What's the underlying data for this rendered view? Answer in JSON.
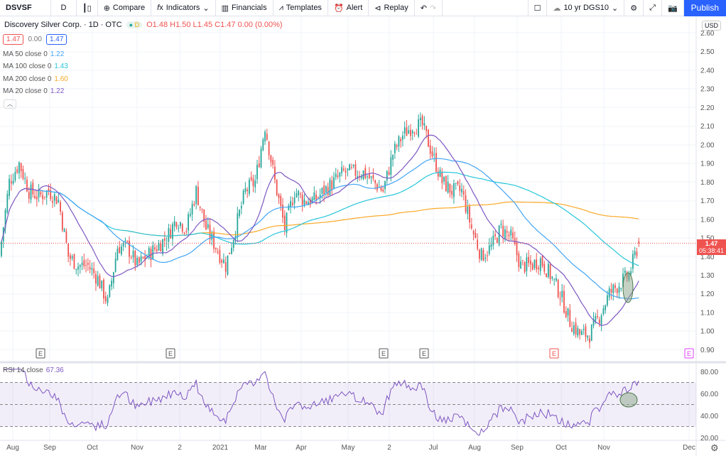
{
  "toolbar": {
    "symbol": "DSVSF",
    "interval": "D",
    "compare": "Compare",
    "indicators": "Indicators",
    "financials": "Financials",
    "templates": "Templates",
    "alert": "Alert",
    "replay": "Replay",
    "compare_symbol": "10 yr DGS10",
    "publish": "Publish"
  },
  "legend": {
    "title": "Discovery Silver Corp. · 1D · OTC",
    "badge": "D",
    "o": "O1.48",
    "h": "H1.50",
    "l": "L1.45",
    "c": "C1.47",
    "change": "0.00 (0.00%)",
    "bid": "1.47",
    "spread": "0.00",
    "ask": "1.47"
  },
  "indicators": [
    {
      "label": "MA 50 close 0",
      "value": "1.22",
      "color": "#42a5f5"
    },
    {
      "label": "MA 100 close 0",
      "value": "1.43",
      "color": "#26c6da"
    },
    {
      "label": "MA 200 close 0",
      "value": "1.60",
      "color": "#f9a825"
    },
    {
      "label": "MA 20 close 0",
      "value": "1.22",
      "color": "#7e57c2"
    }
  ],
  "rsi": {
    "label": "RSI 14 close",
    "value": "67.36"
  },
  "price_axis": {
    "currency": "USD",
    "last_price": "1.47",
    "countdown": "05:38:41",
    "ticks": [
      "2.60",
      "2.50",
      "2.40",
      "2.30",
      "2.20",
      "2.10",
      "2.00",
      "1.90",
      "1.80",
      "1.70",
      "1.60",
      "1.50",
      "1.40",
      "1.30",
      "1.20",
      "1.10",
      "1.00",
      "0.90"
    ]
  },
  "rsi_axis": {
    "ticks": [
      "80.00",
      "60.00",
      "40.00",
      "20.00"
    ]
  },
  "time_axis": [
    "Aug",
    "Sep",
    "Oct",
    "Nov",
    "2",
    "2021",
    "Mar",
    "Apr",
    "May",
    "2",
    "Jul",
    "Aug",
    "Sep",
    "Oct",
    "Nov",
    "Dec"
  ],
  "earnings_markers": [
    "E",
    "E",
    "E",
    "E",
    "E",
    "E"
  ],
  "colors": {
    "up": "#26a69a",
    "down": "#ef5350",
    "ma20": "#7e57c2",
    "ma50": "#42a5f5",
    "ma100": "#26c6da",
    "ma200": "#f9a825"
  },
  "chart_data": {
    "type": "candlestick",
    "ylim": [
      0.85,
      2.65
    ],
    "rsi_ylim": [
      15,
      85
    ],
    "weekly_close": [
      1.4,
      1.8,
      1.9,
      1.75,
      1.72,
      1.75,
      1.7,
      1.4,
      1.35,
      1.35,
      1.28,
      1.15,
      1.45,
      1.45,
      1.35,
      1.4,
      1.45,
      1.5,
      1.6,
      1.55,
      1.75,
      1.55,
      1.45,
      1.35,
      1.55,
      1.75,
      1.8,
      2.1,
      1.8,
      1.55,
      1.75,
      1.7,
      1.7,
      1.75,
      1.8,
      1.85,
      1.85,
      1.85,
      1.8,
      1.75,
      1.95,
      2.05,
      2.1,
      2.1,
      1.95,
      1.8,
      1.75,
      1.75,
      1.55,
      1.4,
      1.45,
      1.55,
      1.5,
      1.35,
      1.35,
      1.38,
      1.3,
      1.2,
      1.05,
      0.98,
      0.98,
      1.08,
      1.2,
      1.25,
      1.3,
      1.47
    ]
  }
}
